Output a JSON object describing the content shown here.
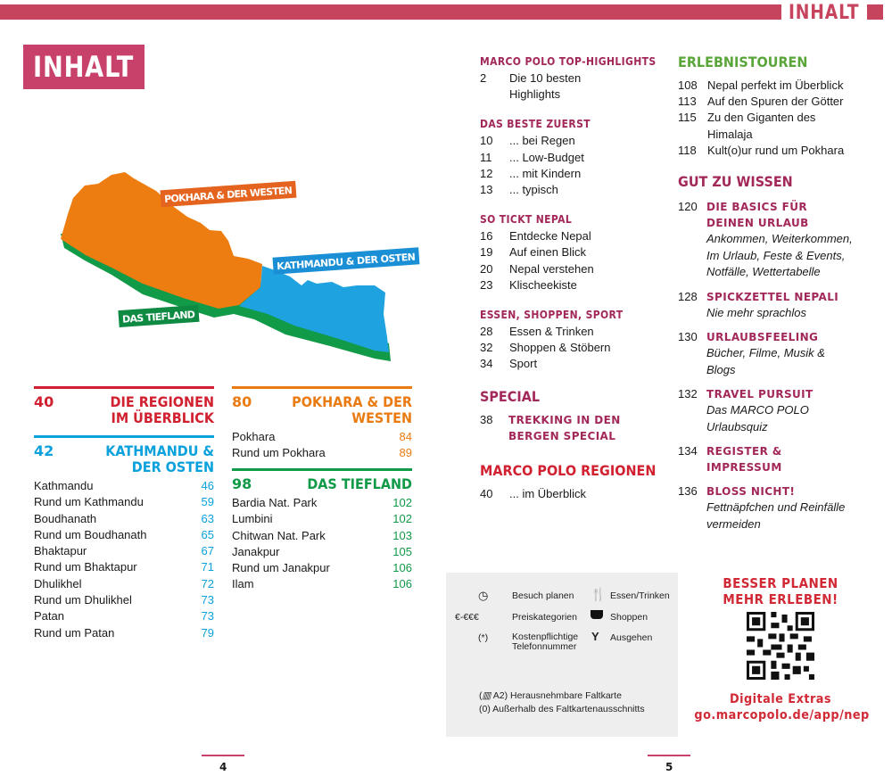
{
  "header": {
    "tag": "INHALT",
    "title": "INHALT"
  },
  "colors": {
    "brand": "#c8416a",
    "red": "#d1202f",
    "blue": "#0aa1dc",
    "orange": "#ea7b13",
    "green": "#119a48",
    "magenta": "#a3285a",
    "toursGreen": "#5aa63a"
  },
  "map": {
    "labels": {
      "west": "POKHARA & DER WESTEN",
      "east": "KATHMANDU & DER OSTEN",
      "lowland": "DAS TIEFLAND"
    }
  },
  "regions": {
    "overview": {
      "page": "40",
      "title": "DIE REGIONEN IM ÜBERBLICK"
    },
    "kathmandu": {
      "page": "42",
      "title": "KATHMANDU & DER OSTEN",
      "items": [
        {
          "name": "Kathmandu",
          "page": "46"
        },
        {
          "name": "Rund um Kathmandu",
          "page": "59"
        },
        {
          "name": "Boudhanath",
          "page": "63"
        },
        {
          "name": "Rund um Boudhanath",
          "page": "65"
        },
        {
          "name": "Bhaktapur",
          "page": "67"
        },
        {
          "name": "Rund um Bhaktapur",
          "page": "71"
        },
        {
          "name": "Dhulikhel",
          "page": "72"
        },
        {
          "name": "Rund um Dhulikhel",
          "page": "73"
        },
        {
          "name": "Patan",
          "page": "73"
        },
        {
          "name": "Rund um Patan",
          "page": "79"
        }
      ]
    },
    "pokhara": {
      "page": "80",
      "title": "POKHARA & DER WESTEN",
      "items": [
        {
          "name": "Pokhara",
          "page": "84"
        },
        {
          "name": "Rund um Pokhara",
          "page": "89"
        }
      ]
    },
    "tiefland": {
      "page": "98",
      "title": "DAS TIEFLAND",
      "items": [
        {
          "name": "Bardia Nat. Park",
          "page": "102"
        },
        {
          "name": "Lumbini",
          "page": "102"
        },
        {
          "name": "Chitwan Nat. Park",
          "page": "103"
        },
        {
          "name": "Janakpur",
          "page": "105"
        },
        {
          "name": "Rund um Janakpur",
          "page": "106"
        },
        {
          "name": "Ilam",
          "page": "106"
        }
      ]
    }
  },
  "col3": {
    "sections": [
      {
        "title": "MARCO POLO TOP-HIGHLIGHTS",
        "items": [
          {
            "page": "2",
            "text": "Die 10 besten"
          },
          {
            "page": "",
            "text": "Highlights"
          }
        ]
      },
      {
        "title": "DAS BESTE ZUERST",
        "items": [
          {
            "page": "10",
            "text": "... bei Regen"
          },
          {
            "page": "11",
            "text": "... Low-Budget"
          },
          {
            "page": "12",
            "text": "... mit Kindern"
          },
          {
            "page": "13",
            "text": "... typisch"
          }
        ]
      },
      {
        "title": "SO TICKT NEPAL",
        "items": [
          {
            "page": "16",
            "text": "Entdecke Nepal"
          },
          {
            "page": "19",
            "text": "Auf einen Blick"
          },
          {
            "page": "20",
            "text": "Nepal verstehen"
          },
          {
            "page": "23",
            "text": "Klischeekiste"
          }
        ]
      },
      {
        "title": "ESSEN, SHOPPEN, SPORT",
        "items": [
          {
            "page": "28",
            "text": "Essen & Trinken"
          },
          {
            "page": "32",
            "text": "Shoppen & Stöbern"
          },
          {
            "page": "34",
            "text": "Sport"
          }
        ]
      }
    ],
    "special": {
      "title": "SPECIAL",
      "page": "38",
      "entry": "TREKKING IN DEN BERGEN SPECIAL"
    },
    "regionen": {
      "title": "MARCO POLO REGIONEN",
      "page": "40",
      "entry": "... im Überblick"
    }
  },
  "col4": {
    "tours": {
      "title": "ERLEBNISTOUREN",
      "items": [
        {
          "page": "108",
          "text": "Nepal perfekt im Überblick"
        },
        {
          "page": "113",
          "text": "Auf den Spuren der Götter"
        },
        {
          "page": "115",
          "text": "Zu den Giganten des Himalaja"
        },
        {
          "page": "118",
          "text": "Kult(o)ur rund um Pokhara"
        }
      ]
    },
    "wissen": {
      "title": "GUT ZU WISSEN",
      "items": [
        {
          "page": "120",
          "title": "DIE BASICS FÜR DEINEN URLAUB",
          "sub": "Ankommen, Weiterkommen, Im Urlaub, Feste & Events, Notfälle, Wettertabelle"
        },
        {
          "page": "128",
          "title": "SPICKZETTEL NEPALI",
          "sub": "Nie mehr sprachlos"
        },
        {
          "page": "130",
          "title": "URLAUBSFEELING",
          "sub": "Bücher, Filme, Musik & Blogs"
        },
        {
          "page": "132",
          "title": "TRAVEL PURSUIT",
          "sub": "Das MARCO POLO Urlaubsquiz"
        },
        {
          "page": "134",
          "title": "REGISTER & IMPRESSUM",
          "sub": ""
        },
        {
          "page": "136",
          "title": "BLOSS NICHT!",
          "sub": "Fettnäpfchen und Reinfälle vermeiden"
        }
      ]
    }
  },
  "legend": {
    "plan": {
      "icon": "clock-icon",
      "label": "Besuch planen"
    },
    "price": {
      "symbol": "€-€€€",
      "label": "Preiskategorien"
    },
    "phone": {
      "symbol": "(*)",
      "label": "Kostenpflichtige Telefonnummer"
    },
    "food": {
      "icon": "cutlery-icon",
      "label": "Essen/Trinken"
    },
    "shop": {
      "icon": "basket-icon",
      "label": "Shoppen"
    },
    "going": {
      "icon": "cocktail-icon",
      "label": "Ausgehen"
    },
    "map1": "A2) Herausnehmbare Faltkarte",
    "map1prefix": "(",
    "map2": "(0) Außerhalb des Faltkartenausschnitts"
  },
  "promo": {
    "line1": "BESSER PLANEN",
    "line2": "MEHR ERLEBEN!",
    "extras": "Digitale Extras",
    "url": "go.marcopolo.de/app/nep"
  },
  "pages": {
    "left": "4",
    "right": "5"
  }
}
